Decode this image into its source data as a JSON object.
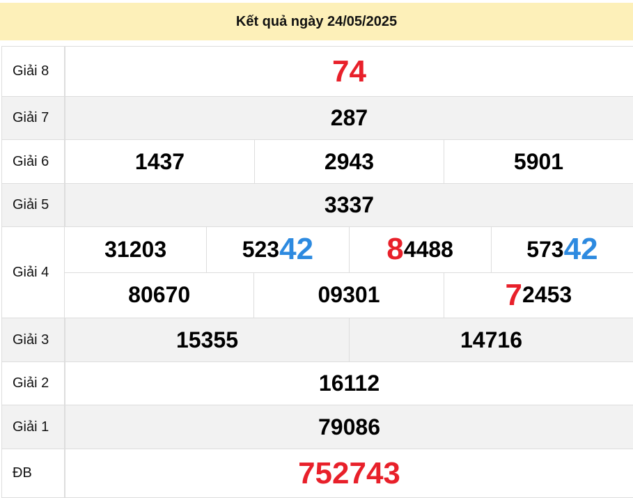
{
  "title": "Kết quả ngày 24/05/2025",
  "colors": {
    "header_bg": "#fdf0b9",
    "highlight_red": "#e8202a",
    "highlight_blue": "#2d8ae0",
    "row_alt": "#f2f2f2"
  },
  "prizes": {
    "g8": {
      "label": "Giải 8",
      "n": [
        [
          {
            "t": "74"
          }
        ]
      ]
    },
    "g7": {
      "label": "Giải 7",
      "n": [
        [
          {
            "t": "287"
          }
        ]
      ]
    },
    "g6": {
      "label": "Giải 6",
      "n": [
        [
          {
            "t": "1437"
          }
        ],
        [
          {
            "t": "2943"
          }
        ],
        [
          {
            "t": "5901"
          }
        ]
      ]
    },
    "g5": {
      "label": "Giải 5",
      "n": [
        [
          {
            "t": "3337"
          }
        ]
      ]
    },
    "g4": {
      "label": "Giải 4",
      "n": [
        [
          {
            "t": "31203"
          }
        ],
        [
          {
            "t": "523"
          },
          {
            "t": "42"
          }
        ],
        [
          {
            "t": "8"
          },
          {
            "t": "4488"
          }
        ],
        [
          {
            "t": "573"
          },
          {
            "t": "42"
          }
        ],
        [
          {
            "t": "80670"
          }
        ],
        [
          {
            "t": "09301"
          }
        ],
        [
          {
            "t": "7"
          },
          {
            "t": "2453"
          }
        ]
      ]
    },
    "g3": {
      "label": "Giải 3",
      "n": [
        [
          {
            "t": "15355"
          }
        ],
        [
          {
            "t": "14716"
          }
        ]
      ]
    },
    "g2": {
      "label": "Giải 2",
      "n": [
        [
          {
            "t": "16112"
          }
        ]
      ]
    },
    "g1": {
      "label": "Giải 1",
      "n": [
        [
          {
            "t": "79086"
          }
        ]
      ]
    },
    "db": {
      "label": "ĐB",
      "n": [
        [
          {
            "t": "752743"
          }
        ]
      ]
    }
  }
}
